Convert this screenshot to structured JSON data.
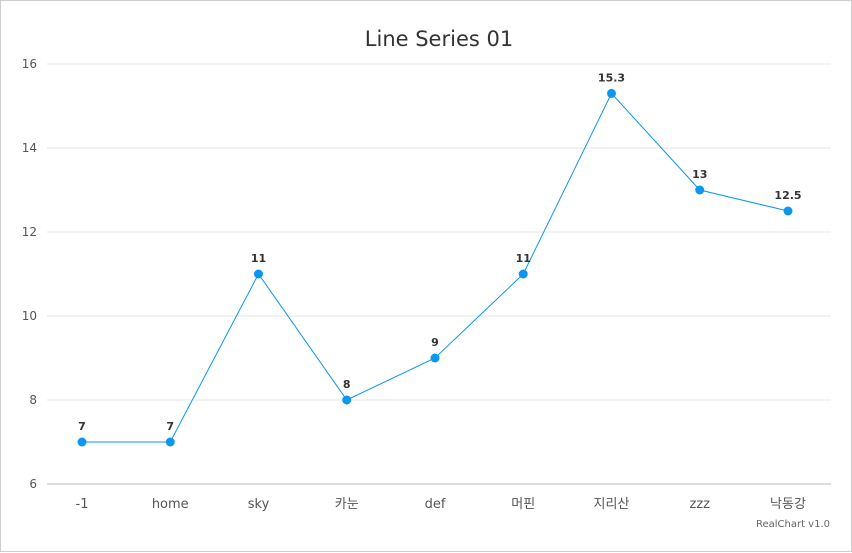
{
  "chart_data": {
    "type": "line",
    "title": "Line Series 01",
    "categories": [
      "-1",
      "home",
      "sky",
      "카눈",
      "def",
      "머핀",
      "지리산",
      "zzz",
      "낙동강"
    ],
    "series": [
      {
        "values": [
          7,
          7,
          11,
          8,
          9,
          11,
          15.3,
          13,
          12.5
        ],
        "data_labels": [
          "7",
          "7",
          "11",
          "8",
          "9",
          "11",
          "15.3",
          "13",
          "12.5"
        ],
        "color": "#0c96f0"
      }
    ],
    "ylim": [
      6,
      16
    ],
    "yticks": [
      6,
      8,
      10,
      12,
      14,
      16
    ],
    "ytick_labels": [
      "6",
      "8",
      "10",
      "12",
      "14",
      "16"
    ],
    "grid": true,
    "xlabel": "",
    "ylabel": ""
  },
  "credit": "RealChart v1.0",
  "colors": {
    "series": "#0c96f0",
    "grid": "#e6e6e6",
    "axis": "#bbbbbb"
  }
}
